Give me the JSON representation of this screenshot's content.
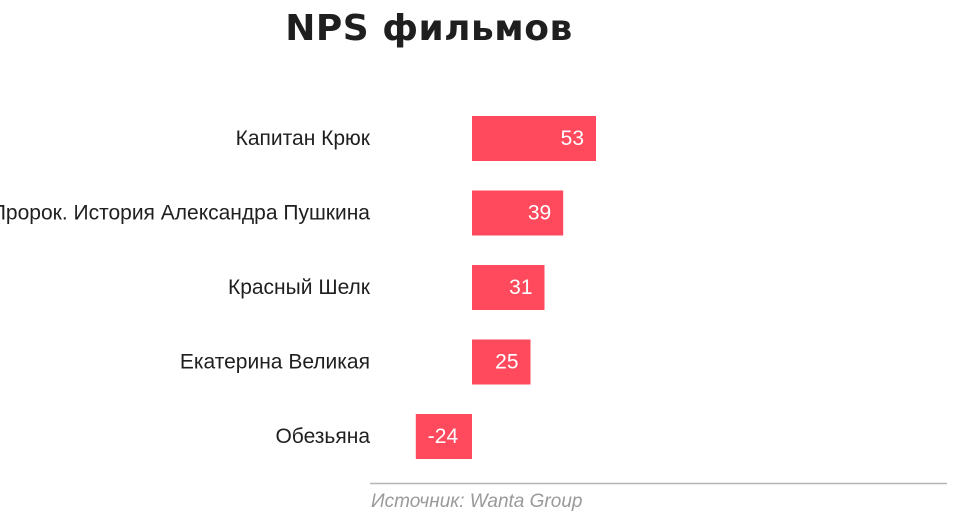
{
  "chart_data": {
    "type": "bar",
    "orientation": "horizontal",
    "title": "NPS фильмов",
    "categories": [
      "Капитан Крюк",
      "Пророк. История Александра Пушкина",
      "Красный Шелк",
      "Екатерина Великая",
      "Обезьяна"
    ],
    "values": [
      53,
      39,
      31,
      25,
      -24
    ],
    "value_labels": [
      "53",
      "39",
      "31",
      "25",
      "-24"
    ],
    "color": "#ff4a5e",
    "grid": false,
    "source": "Источник: Wanta Group"
  }
}
